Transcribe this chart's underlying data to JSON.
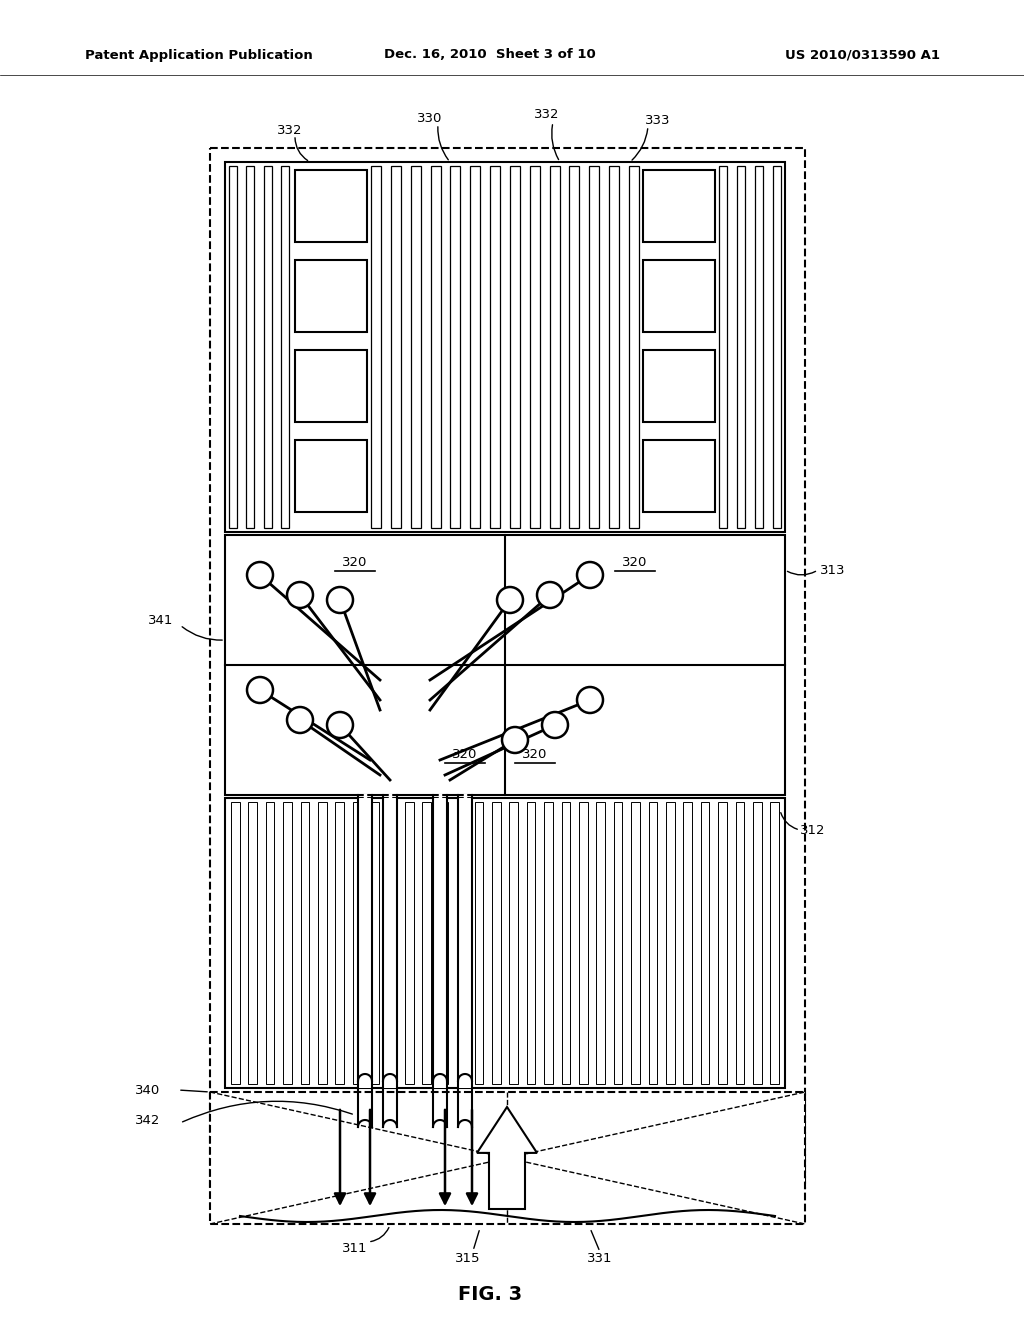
{
  "bg_color": "#ffffff",
  "line_color": "#000000",
  "header_left": "Patent Application Publication",
  "header_mid": "Dec. 16, 2010  Sheet 3 of 10",
  "header_right": "US 2010/0313590 A1",
  "fig_label": "FIG. 3"
}
